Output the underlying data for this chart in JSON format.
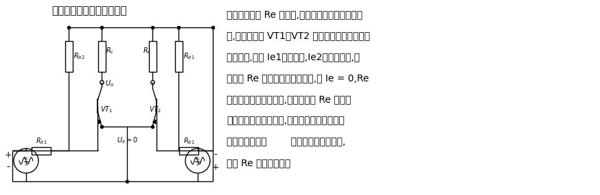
{
  "title": "动态工作时的交流通路如图",
  "text_lines": [
    "所示。图中的 Re 没有了,这是因为当输入差模信号",
    "时,由于输入到 VT1、VT2 基极的信号大小相等、",
    "极性相反,所以 Ie1增加多少,Ie2就减小多少,于",
    "是流过 Re 的电流总量是不变的,即 Ie = 0,Re",
    "对差模信号相当于短路,这就好像在 Re 上并联",
    "了一个旁路电容。因此,这种电路的电压增益、",
    "输入阻抗都和图        的基本差动电路相同,",
    "即和 Re 的存在无关。"
  ],
  "bg_color": "#ffffff",
  "line_color": "#000000",
  "text_fontsize": 10,
  "title_fontsize": 11
}
